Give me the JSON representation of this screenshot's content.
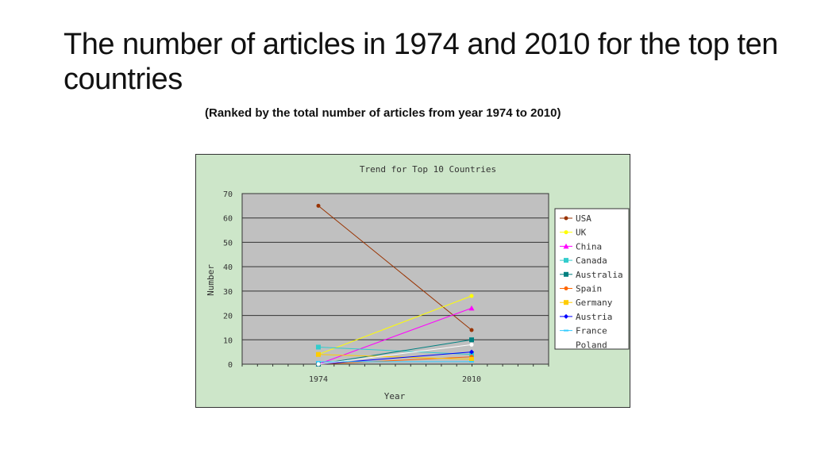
{
  "slide": {
    "title": "The number of articles in 1974 and 2010 for the top ten countries",
    "subtitle": "(Ranked by the total number of articles from year 1974 to 2010)"
  },
  "chart_data": {
    "type": "line",
    "title": "Trend for Top 10 Countries",
    "xlabel": "Year",
    "ylabel": "Number",
    "categories": [
      "1974",
      "2010"
    ],
    "ylim": [
      0,
      70
    ],
    "yticks": [
      0,
      10,
      20,
      30,
      40,
      50,
      60,
      70
    ],
    "grid": true,
    "legend_position": "right",
    "series": [
      {
        "name": "USA",
        "values": [
          65,
          14
        ],
        "color": "#993300",
        "marker": "circle"
      },
      {
        "name": "UK",
        "values": [
          4,
          28
        ],
        "color": "#ffff00",
        "marker": "circle"
      },
      {
        "name": "China",
        "values": [
          0,
          23
        ],
        "color": "#ff00ff",
        "marker": "triangle"
      },
      {
        "name": "Canada",
        "values": [
          7,
          4
        ],
        "color": "#33cccc",
        "marker": "square"
      },
      {
        "name": "Australia",
        "values": [
          0,
          10
        ],
        "color": "#008080",
        "marker": "square"
      },
      {
        "name": "Spain",
        "values": [
          0,
          3
        ],
        "color": "#ff6600",
        "marker": "circle"
      },
      {
        "name": "Germany",
        "values": [
          4,
          2
        ],
        "color": "#ffcc00",
        "marker": "square"
      },
      {
        "name": "Austria",
        "values": [
          0,
          5
        ],
        "color": "#0000ff",
        "marker": "diamond"
      },
      {
        "name": "France",
        "values": [
          1,
          1
        ],
        "color": "#33ccff",
        "marker": "dash"
      },
      {
        "name": "Poland",
        "values": [
          0,
          8
        ],
        "color": "#ffffff",
        "marker": "circle"
      }
    ]
  }
}
